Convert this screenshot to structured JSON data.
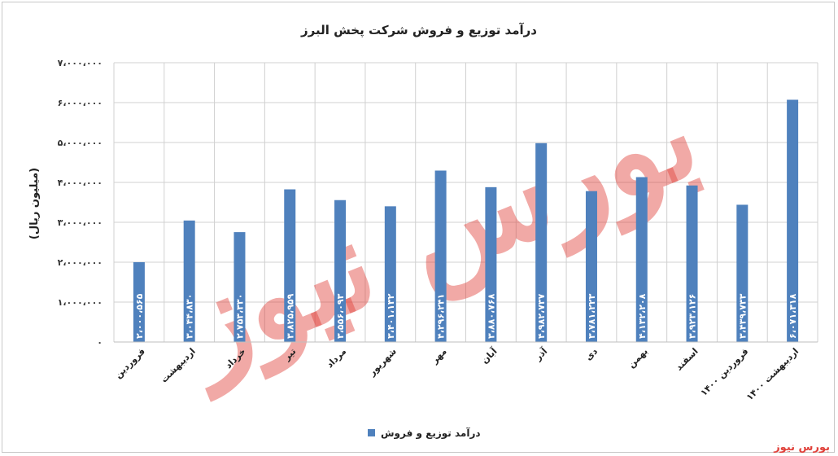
{
  "chart_data": {
    "type": "bar",
    "title": "درآمد توزیع و فروش شرکت پخش البرز",
    "ylabel": "(میلیون ریال)",
    "xlabel": "",
    "ylim": [
      0,
      7000000
    ],
    "yticks": [
      0,
      1000000,
      2000000,
      3000000,
      4000000,
      5000000,
      6000000,
      7000000
    ],
    "ytick_labels": [
      "۰",
      "۱،۰۰۰،۰۰۰",
      "۲،۰۰۰،۰۰۰",
      "۳،۰۰۰،۰۰۰",
      "۴،۰۰۰،۰۰۰",
      "۵،۰۰۰،۰۰۰",
      "۶،۰۰۰،۰۰۰",
      "۷،۰۰۰،۰۰۰"
    ],
    "grid": true,
    "legend_position": "bottom",
    "bar_color": "#4f81bd",
    "categories": [
      "فروردین",
      "اردیبهشت",
      "خرداد",
      "تیر",
      "مرداد",
      "شهریور",
      "مهر",
      "آبان",
      "آذر",
      "دی",
      "بهمن",
      "اسفند",
      "فروردین ۱۴۰۰",
      "اردیبهشت ۱۴۰۰"
    ],
    "series": [
      {
        "name": "درآمد توزیع و فروش",
        "values": [
          2000565,
          3044830,
          2753330,
          3825959,
          3556093,
          3401132,
          4296241,
          3880768,
          4982737,
          3781223,
          4132208,
          3923126,
          3439733,
          6071318
        ],
        "labels": [
          "۲،۰۰۰،۵۶۵",
          "۳،۰۴۴،۸۳۰",
          "۲،۷۵۳،۳۳۰",
          "۳،۸۲۵،۹۵۹",
          "۳،۵۵۶،۰۹۳",
          "۳،۴۰۱،۱۳۲",
          "۴،۲۹۶،۲۴۱",
          "۳،۸۸۰،۷۶۸",
          "۴،۹۸۲،۷۳۷",
          "۳،۷۸۱،۲۲۳",
          "۴،۱۳۲،۲۰۸",
          "۳،۹۲۳،۱۲۶",
          "۳،۴۳۹،۷۳۳",
          "۶،۰۷۱،۳۱۸"
        ]
      }
    ]
  },
  "watermark": {
    "text": "بورس نیوز",
    "color": "#e0413a"
  }
}
